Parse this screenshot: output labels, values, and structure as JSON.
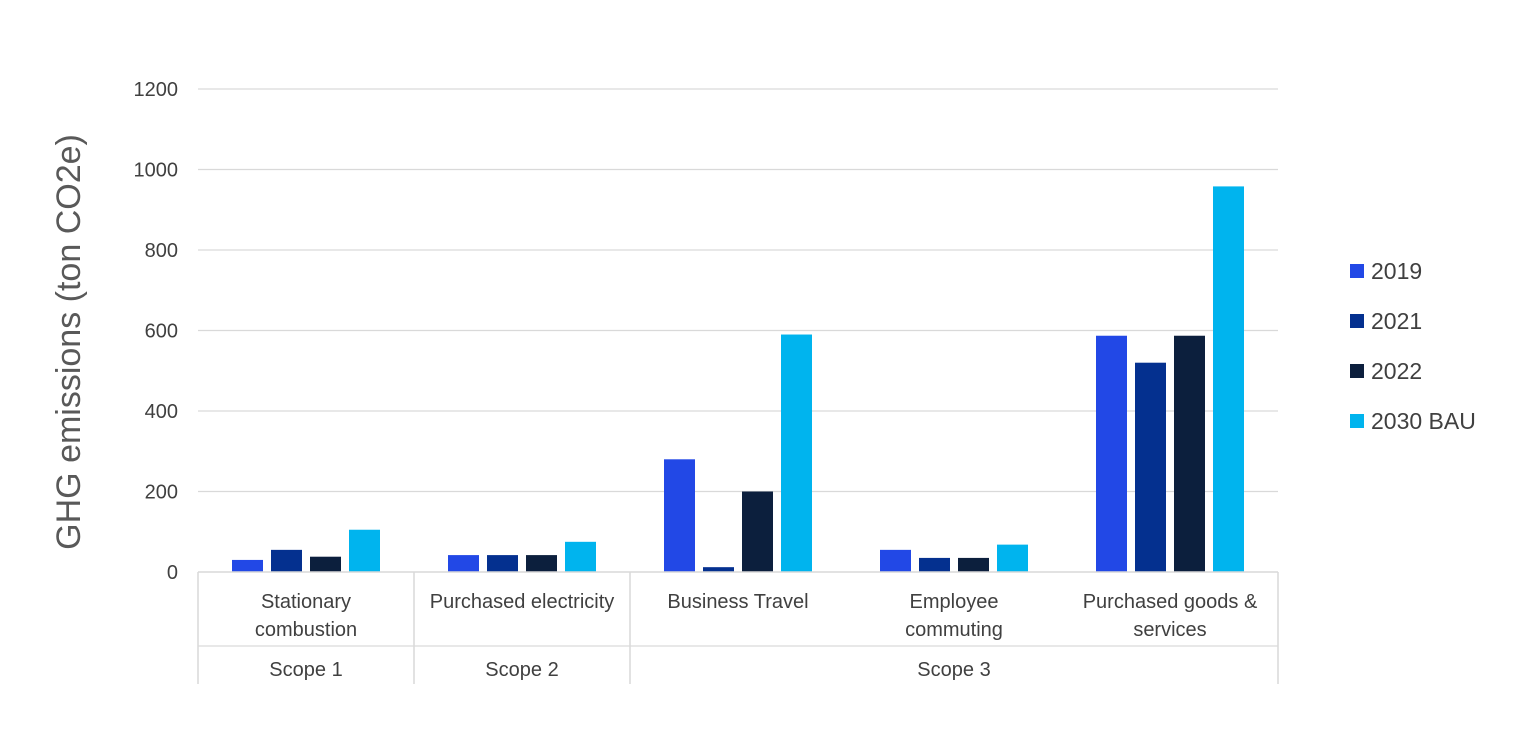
{
  "chart_data": {
    "type": "bar",
    "title": "",
    "ylabel": "GHG emissions (ton CO2e)",
    "xlabel": "",
    "ylim": [
      0,
      1200
    ],
    "yticks": [
      "0",
      "200",
      "400",
      "600",
      "800",
      "1000",
      "1200"
    ],
    "grid": true,
    "legend_position": "right",
    "categories": [
      [
        "Stationary",
        "combustion"
      ],
      [
        "Purchased electricity"
      ],
      [
        "Business Travel"
      ],
      [
        "Employee",
        "commuting"
      ],
      [
        "Purchased goods &",
        "services"
      ]
    ],
    "groups": [
      {
        "label": "Scope 1",
        "categories": [
          0
        ]
      },
      {
        "label": "Scope 2",
        "categories": [
          1
        ]
      },
      {
        "label": "Scope 3",
        "categories": [
          2,
          3,
          4
        ]
      }
    ],
    "series": [
      {
        "name": "2019",
        "color": "#2248E6",
        "values": [
          30,
          42,
          280,
          55,
          587
        ]
      },
      {
        "name": "2021",
        "color": "#04308F",
        "values": [
          55,
          42,
          12,
          35,
          520
        ]
      },
      {
        "name": "2022",
        "color": "#0C1F3D",
        "values": [
          38,
          42,
          200,
          35,
          587
        ]
      },
      {
        "name": "2030 BAU",
        "color": "#00B4EE",
        "values": [
          105,
          75,
          590,
          68,
          958
        ]
      }
    ]
  }
}
